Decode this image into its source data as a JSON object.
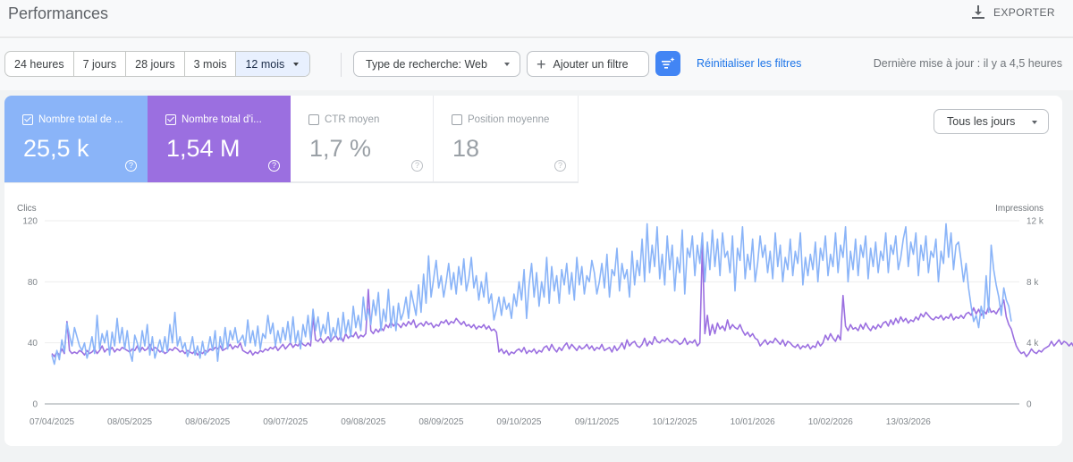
{
  "header": {
    "title": "Performances",
    "export_label": "EXPORTER"
  },
  "filters": {
    "date_ranges": [
      "24 heures",
      "7 jours",
      "28 jours",
      "3 mois",
      "12 mois"
    ],
    "active_range": "12 mois",
    "search_type": "Type de recherche: Web",
    "add_filter": "Ajouter un filtre",
    "reset": "Réinitialiser les filtres",
    "last_update": "Dernière mise à jour : il y a 4,5 heures"
  },
  "metrics": [
    {
      "label": "Nombre total de ...",
      "value": "25,5 k",
      "checked": true,
      "color": "#8ab4f8"
    },
    {
      "label": "Nombre total d'i...",
      "value": "1,54 M",
      "checked": true,
      "color": "#9b6fe0"
    },
    {
      "label": "CTR moyen",
      "value": "1,7 %",
      "checked": false
    },
    {
      "label": "Position moyenne",
      "value": "18",
      "checked": false
    }
  ],
  "days_selector": "Tous les jours",
  "chart_data": {
    "type": "line",
    "ylabel_left": "Clics",
    "ylabel_right": "Impressions",
    "y_left_ticks": [
      "0",
      "40",
      "80",
      "120"
    ],
    "y_right_ticks": [
      "0",
      "4 k",
      "8 k",
      "12 k"
    ],
    "ylim_left": [
      0,
      120
    ],
    "ylim_right": [
      0,
      12000
    ],
    "x_ticks": [
      "07/04/2025",
      "08/05/2025",
      "08/06/2025",
      "09/07/2025",
      "09/08/2025",
      "08/09/2025",
      "09/10/2025",
      "09/11/2025",
      "10/12/2025",
      "10/01/2026",
      "10/02/2026",
      "13/03/2026"
    ],
    "x_points_per_tick": 31,
    "grid": true,
    "series": [
      {
        "axis": "left",
        "color": "#8ab4f8",
        "values": [
          32,
          26,
          35,
          29,
          42,
          34,
          53,
          45,
          38,
          50,
          44,
          38,
          35,
          40,
          30,
          36,
          44,
          33,
          58,
          36,
          46,
          40,
          48,
          32,
          47,
          38,
          56,
          40,
          50,
          36,
          48,
          34,
          28,
          45,
          40,
          34,
          48,
          38,
          52,
          32,
          44,
          30,
          36,
          42,
          34,
          44,
          34,
          52,
          40,
          60,
          38,
          44,
          36,
          40,
          31,
          36,
          44,
          32,
          38,
          30,
          41,
          32,
          35,
          44,
          35,
          48,
          28,
          44,
          36,
          50,
          36,
          48,
          42,
          50,
          40,
          42,
          45,
          38,
          55,
          40,
          48,
          38,
          51,
          36,
          46,
          43,
          58,
          46,
          53,
          38,
          48,
          40,
          50,
          42,
          54,
          40,
          57,
          40,
          48,
          36,
          52,
          44,
          58,
          42,
          62,
          48,
          57,
          44,
          52,
          46,
          60,
          42,
          50,
          44,
          56,
          42,
          60,
          46,
          55,
          44,
          64,
          50,
          58,
          48,
          70,
          55,
          62,
          52,
          68,
          58,
          73,
          48,
          62,
          54,
          75,
          50,
          64,
          48,
          66,
          55,
          60,
          70,
          56,
          74,
          66,
          58,
          78,
          60,
          85,
          66,
          97,
          70,
          82,
          94,
          76,
          84,
          70,
          80,
          92,
          75,
          86,
          72,
          90,
          78,
          95,
          74,
          82,
          96,
          76,
          84,
          68,
          80,
          70,
          86,
          66,
          72,
          55,
          62,
          70,
          58,
          70,
          62,
          66,
          56,
          72,
          64,
          80,
          68,
          88,
          56,
          78,
          92,
          70,
          86,
          64,
          80,
          70,
          96,
          66,
          90,
          74,
          84,
          66,
          88,
          78,
          92,
          72,
          86,
          68,
          96,
          78,
          90,
          72,
          84,
          80,
          94,
          86,
          72,
          80,
          92,
          76,
          98,
          70,
          88,
          84,
          102,
          74,
          92,
          82,
          88,
          70,
          100,
          78,
          94,
          84,
          108,
          80,
          118,
          86,
          104,
          90,
          116,
          82,
          98,
          78,
          110,
          88,
          104,
          74,
          96,
          86,
          114,
          72,
          102,
          96,
          110,
          84,
          104,
          92,
          112,
          80,
          106,
          88,
          114,
          90,
          108,
          84,
          112,
          96,
          100,
          86,
          110,
          74,
          102,
          94,
          116,
          82,
          98,
          88,
          108,
          80,
          92,
          110,
          96,
          104,
          86,
          100,
          82,
          112,
          90,
          104,
          80,
          96,
          88,
          108,
          84,
          100,
          92,
          112,
          78,
          96,
          84,
          98,
          88,
          106,
          80,
          102,
          94,
          110,
          84,
          98,
          90,
          112,
          86,
          104,
          96,
          116,
          80,
          100,
          88,
          108,
          84,
          104,
          96,
          110,
          82,
          102,
          90,
          106,
          86,
          100,
          94,
          112,
          86,
          104,
          98,
          110,
          88,
          96,
          108,
          116,
          90,
          106,
          98,
          112,
          84,
          104,
          94,
          110,
          86,
          100,
          96,
          108,
          80,
          100,
          92,
          118,
          96,
          112,
          88,
          104,
          106,
          94,
          80,
          92,
          76,
          64,
          54,
          58,
          50,
          64,
          56,
          84,
          60,
          104,
          88,
          78,
          70,
          58,
          76,
          68,
          64,
          54
        ]
      },
      {
        "axis": "right",
        "color": "#9b6fe0",
        "values": [
          3300,
          3100,
          3400,
          3200,
          3600,
          3300,
          5400,
          3500,
          3300,
          3400,
          3300,
          3500,
          3400,
          3200,
          3500,
          3300,
          3400,
          3600,
          3300,
          3500,
          3800,
          3400,
          3600,
          3500,
          3700,
          3400,
          3600,
          3500,
          3700,
          3600,
          3500,
          3400,
          3600,
          3500,
          3800,
          3400,
          3700,
          3500,
          3600,
          3900,
          3500,
          3700,
          3600,
          3400,
          3500,
          3300,
          3400,
          3600,
          3500,
          3700,
          3600,
          3400,
          3500,
          3300,
          3500,
          3400,
          3300,
          3500,
          3200,
          3400,
          3300,
          3500,
          3400,
          3600,
          3500,
          3700,
          3600,
          3800,
          3500,
          3600,
          3700,
          3900,
          3600,
          3800,
          3700,
          4000,
          3500,
          3400,
          3300,
          3500,
          3200,
          3400,
          3300,
          3500,
          3400,
          3600,
          3500,
          3700,
          3600,
          3800,
          3500,
          3700,
          3900,
          3600,
          3800,
          4000,
          3700,
          3900,
          3800,
          4100,
          3900,
          3800,
          4000,
          3800,
          5700,
          4200,
          4100,
          4300,
          4000,
          4200,
          4400,
          4100,
          4300,
          4500,
          4200,
          4400,
          4100,
          4600,
          4300,
          4500,
          4400,
          4700,
          4300,
          4500,
          4400,
          4600,
          7500,
          4800,
          4600,
          4900,
          4700,
          5000,
          4800,
          5200,
          5000,
          5400,
          5100,
          5300,
          5200,
          5000,
          5300,
          5100,
          5400,
          5200,
          5500,
          5000,
          5200,
          5300,
          5100,
          5400,
          5200,
          5300,
          5000,
          5200,
          5100,
          5400,
          5300,
          5500,
          5200,
          5400,
          5300,
          5600,
          5400,
          5200,
          5400,
          5100,
          5200,
          5000,
          5200,
          4900,
          5100,
          5000,
          5200,
          4900,
          5100,
          4800,
          4900,
          4700,
          3400,
          3600,
          3300,
          3500,
          3200,
          3400,
          3300,
          3500,
          3600,
          3400,
          3700,
          3300,
          3500,
          3400,
          3600,
          3300,
          3500,
          3400,
          3700,
          3800,
          3500,
          3900,
          3600,
          3400,
          3700,
          3500,
          3800,
          4000,
          3600,
          3900,
          3700,
          3500,
          3800,
          3600,
          3700,
          3900,
          3600,
          3800,
          3500,
          3700,
          3600,
          3900,
          3500,
          3600,
          3700,
          3400,
          3800,
          3500,
          3700,
          4000,
          3600,
          4200,
          3800,
          4000,
          4100,
          3800,
          3700,
          3900,
          4300,
          3800,
          4100,
          3900,
          4400,
          4100,
          4000,
          4200,
          4100,
          4300,
          4100,
          4000,
          4200,
          4100,
          3900,
          4000,
          4300,
          3900,
          4100,
          4000,
          4200,
          3800,
          4000,
          10500,
          4600,
          5800,
          4500,
          5200,
          4600,
          5300,
          4900,
          5100,
          4800,
          5500,
          4900,
          5200,
          5000,
          4900,
          5200,
          4800,
          4500,
          4700,
          4400,
          4600,
          4300,
          4200,
          3800,
          4000,
          4200,
          3900,
          4100,
          4000,
          4300,
          4100,
          3900,
          4200,
          3800,
          4100,
          4000,
          3800,
          3700,
          3900,
          3600,
          3800,
          3700,
          3900,
          3600,
          3800,
          3700,
          4100,
          3800,
          4000,
          4500,
          4200,
          4600,
          4300,
          4100,
          4500,
          4200,
          7100,
          5100,
          4800,
          5200,
          4900,
          5000,
          4800,
          5200,
          4900,
          5300,
          5000,
          4800,
          5100,
          4900,
          5200,
          5000,
          5300,
          5400,
          5100,
          5500,
          5200,
          5600,
          5300,
          5700,
          5400,
          5600,
          5300,
          5500,
          5400,
          5700,
          5500,
          5900,
          5700,
          6000,
          5800,
          5600,
          5500,
          5700,
          5600,
          5800,
          5500,
          5700,
          5600,
          5900,
          5500,
          5700,
          5600,
          5800,
          5600,
          5900,
          6000,
          5800,
          6300,
          5900,
          6200,
          5800,
          6100,
          5900,
          6400,
          6000,
          6100,
          5900,
          6200,
          6400,
          6800,
          5700,
          5200,
          4900,
          4300,
          3800,
          3500,
          3300,
          3400,
          3100,
          3300,
          3600,
          3400,
          3300,
          3500,
          3400,
          3600,
          3700,
          3800,
          4100,
          3800,
          4000,
          4200,
          3900,
          4100,
          4000,
          3800,
          4000,
          3700,
          3500,
          3300,
          3400,
          3300,
          3300,
          3500
        ]
      }
    ]
  }
}
